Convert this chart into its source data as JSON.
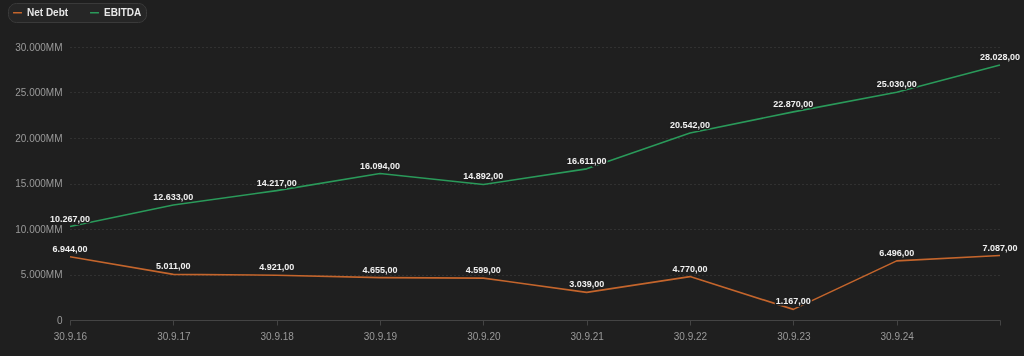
{
  "chart_data": {
    "type": "line",
    "categories": [
      "30.9.16",
      "30.9.17",
      "30.9.18",
      "30.9.19",
      "30.9.20",
      "30.9.21",
      "30.9.22",
      "30.9.23",
      "30.9.24",
      null
    ],
    "series": [
      {
        "name": "Net Debt",
        "color": "#c4652c",
        "values": [
          6944,
          5011,
          4921,
          4655,
          4599,
          3039,
          4770,
          1167,
          6496,
          7087
        ],
        "value_labels": [
          "6.944,00",
          "5.011,00",
          "4.921,00",
          "4.655,00",
          "4.599,00",
          "3.039,00",
          "4.770,00",
          "1.167,00",
          "6.496,00",
          "7.087,00"
        ]
      },
      {
        "name": "EBITDA",
        "color": "#2a9a5a",
        "values": [
          10267,
          12633,
          14217,
          16094,
          14892,
          16611,
          20542,
          22870,
          25030,
          28028
        ],
        "value_labels": [
          "10.267,00",
          "12.633,00",
          "14.217,00",
          "16.094,00",
          "14.892,00",
          "16.611,00",
          "20.542,00",
          "22.870,00",
          "25.030,00",
          "28.028,00"
        ]
      }
    ],
    "ylim": [
      0,
      30000
    ],
    "yticks": [
      0,
      {
        "value": 5000,
        "label": "5.000MM"
      },
      {
        "value": 10000,
        "label": "10.000MM"
      },
      {
        "value": 15000,
        "label": "15.000MM"
      },
      {
        "value": 20000,
        "label": "20.000MM"
      },
      {
        "value": 25000,
        "label": "25.000MM"
      },
      {
        "value": 30000,
        "label": "30.000MM"
      }
    ],
    "grid": "y",
    "legend": "top left",
    "marker": "none",
    "line_style": "solid"
  }
}
